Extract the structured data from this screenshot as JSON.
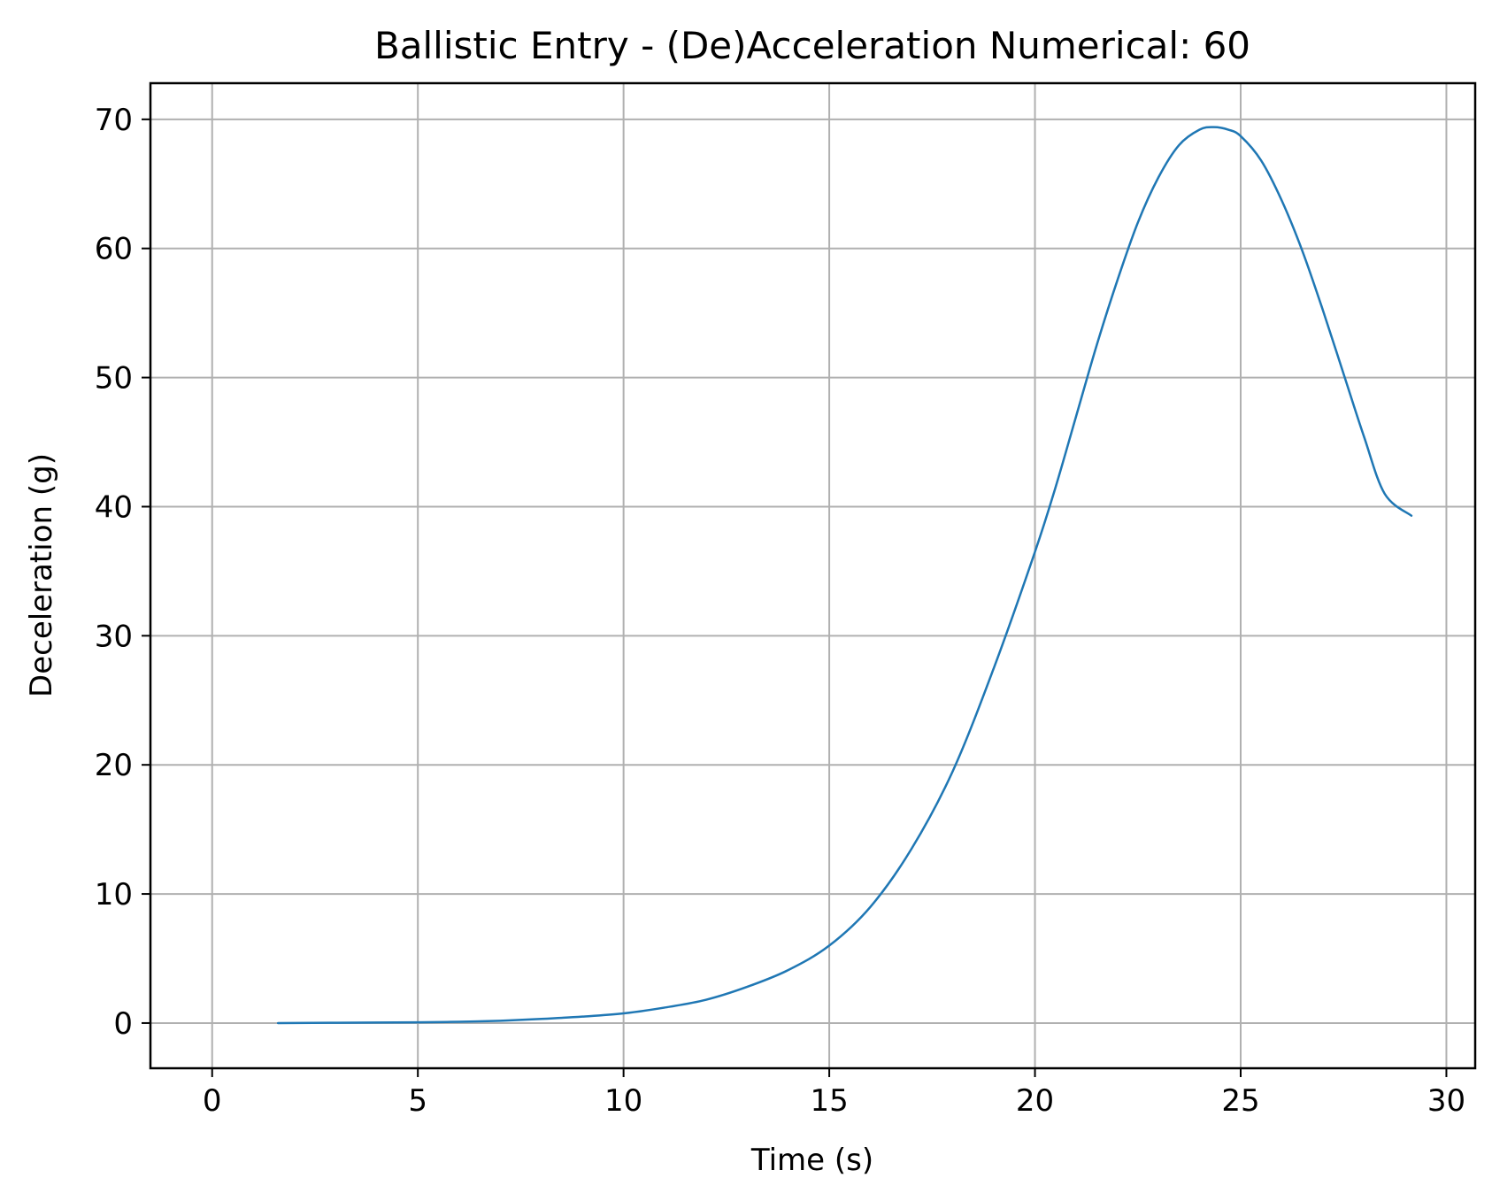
{
  "chart_data": {
    "type": "line",
    "title": "Ballistic Entry - (De)Acceleration Numerical: 60",
    "xlabel": "Time (s)",
    "ylabel": "Deceleration (g)",
    "xlim": [
      -1.5,
      30.7
    ],
    "ylim": [
      -3.5,
      72.8
    ],
    "xticks": [
      0,
      5,
      10,
      15,
      20,
      25,
      30
    ],
    "yticks": [
      0,
      10,
      20,
      30,
      40,
      50,
      60,
      70
    ],
    "grid": true,
    "line_color": "#1f77b4",
    "series": [
      {
        "x": [
          1.6,
          3,
          5,
          6,
          7,
          8,
          9,
          10,
          11,
          12,
          13,
          14,
          15,
          16,
          17,
          18,
          19,
          20,
          20.5,
          21,
          21.5,
          22,
          22.5,
          23,
          23.5,
          24,
          24.35,
          24.7,
          25,
          25.5,
          26,
          26.5,
          27,
          27.5,
          28,
          28.5,
          29.15
        ],
        "values": [
          0.0,
          0.02,
          0.06,
          0.1,
          0.18,
          0.32,
          0.5,
          0.75,
          1.2,
          1.8,
          2.8,
          4.1,
          6.0,
          9.0,
          13.5,
          19.5,
          27.5,
          36.5,
          41.5,
          47.0,
          52.5,
          57.5,
          62.0,
          65.5,
          68.0,
          69.2,
          69.4,
          69.2,
          68.7,
          66.8,
          63.7,
          59.8,
          55.2,
          50.3,
          45.4,
          41.0,
          39.3
        ]
      }
    ]
  }
}
